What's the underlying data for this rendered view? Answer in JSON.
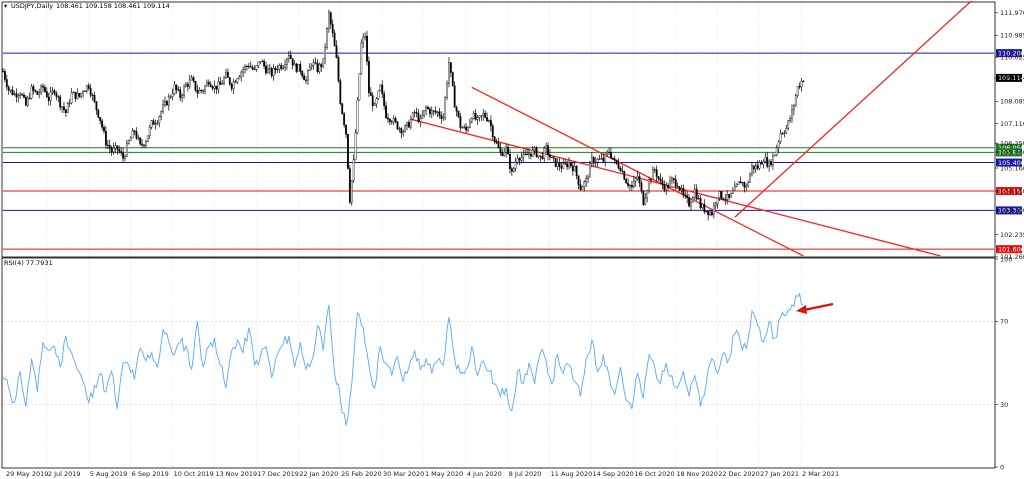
{
  "header": {
    "symbol_label": "USDJPY,Daily",
    "ohlc_text": "108.461 109.158 108.461 109.114",
    "rsi_label": "RSI(4) 77.7931"
  },
  "colors": {
    "candle": "#000000",
    "level_blue": "#1a1aa0",
    "level_green": "#1f7a1f",
    "level_red": "#e01010",
    "trend_red": "#ff2020",
    "rsi_line": "#58a8ff",
    "grid": "#d6d6d6",
    "frame": "#000000"
  },
  "chart_data": [
    {
      "type": "candlestick",
      "ylim": [
        101.3,
        112.4
      ],
      "x_tick_labels": [
        "29 May 2019",
        "2 Jul 2019",
        "5 Aug 2019",
        "6 Sep 2019",
        "10 Oct 2019",
        "13 Nov 2019",
        "17 Dec 2019",
        "22 Jan 2020",
        "25 Feb 2020",
        "30 Mar 2020",
        "1 May 2020",
        "4 Jun 2020",
        "8 Jul 2020",
        "11 Aug 2020",
        "14 Sep 2020",
        "16 Oct 2020",
        "18 Nov 2020",
        "22 Dec 2020",
        "27 Jan 2021",
        "2 Mar 2021"
      ],
      "y_tick_labels": [
        "111.970",
        "110.985",
        "110.025",
        "109.114",
        "108.085",
        "107.110",
        "106.250",
        "105.860",
        "105.160",
        "104.150",
        "103.300",
        "102.235",
        "101.260"
      ],
      "close_path": [
        [
          0,
          109.4
        ],
        [
          3,
          108.6
        ],
        [
          6,
          108.4
        ],
        [
          9,
          108.5
        ],
        [
          12,
          107.9
        ],
        [
          15,
          108.6
        ],
        [
          18,
          108.4
        ],
        [
          21,
          108.7
        ],
        [
          24,
          108.2
        ],
        [
          27,
          108.6
        ],
        [
          30,
          108.0
        ],
        [
          33,
          107.6
        ],
        [
          36,
          108.4
        ],
        [
          40,
          108.3
        ],
        [
          42,
          108.6
        ],
        [
          45,
          108.8
        ],
        [
          48,
          108.0
        ],
        [
          51,
          107.3
        ],
        [
          54,
          106.3
        ],
        [
          57,
          105.9
        ],
        [
          60,
          106.0
        ],
        [
          63,
          105.6
        ],
        [
          66,
          106.3
        ],
        [
          69,
          106.8
        ],
        [
          72,
          106.1
        ],
        [
          75,
          106.4
        ],
        [
          78,
          107.1
        ],
        [
          81,
          107.3
        ],
        [
          84,
          107.8
        ],
        [
          87,
          108.2
        ],
        [
          90,
          108.7
        ],
        [
          93,
          108.3
        ],
        [
          96,
          108.8
        ],
        [
          99,
          109.0
        ],
        [
          102,
          108.5
        ],
        [
          105,
          108.6
        ],
        [
          108,
          109.0
        ],
        [
          111,
          108.7
        ],
        [
          114,
          108.8
        ],
        [
          117,
          109.2
        ],
        [
          120,
          108.8
        ],
        [
          123,
          109.2
        ],
        [
          126,
          109.5
        ],
        [
          129,
          109.7
        ],
        [
          132,
          109.4
        ],
        [
          135,
          109.9
        ],
        [
          138,
          109.5
        ],
        [
          141,
          109.3
        ],
        [
          144,
          109.6
        ],
        [
          147,
          109.7
        ],
        [
          150,
          110.2
        ],
        [
          153,
          109.6
        ],
        [
          156,
          109.5
        ],
        [
          159,
          109.0
        ],
        [
          162,
          109.8
        ],
        [
          165,
          109.5
        ],
        [
          168,
          109.8
        ],
        [
          171,
          111.9
        ],
        [
          173,
          111.0
        ],
        [
          175,
          109.9
        ],
        [
          177,
          108.1
        ],
        [
          180,
          106.7
        ],
        [
          182,
          103.8
        ],
        [
          184,
          105.4
        ],
        [
          186,
          108.0
        ],
        [
          188,
          110.6
        ],
        [
          190,
          111.0
        ],
        [
          192,
          108.5
        ],
        [
          195,
          107.8
        ],
        [
          198,
          108.7
        ],
        [
          201,
          107.5
        ],
        [
          204,
          107.3
        ],
        [
          207,
          107.0
        ],
        [
          210,
          106.8
        ],
        [
          213,
          107.1
        ],
        [
          216,
          107.6
        ],
        [
          219,
          107.2
        ],
        [
          222,
          107.8
        ],
        [
          225,
          107.6
        ],
        [
          228,
          107.6
        ],
        [
          231,
          107.4
        ],
        [
          234,
          109.8
        ],
        [
          237,
          108.0
        ],
        [
          240,
          107.0
        ],
        [
          243,
          106.8
        ],
        [
          246,
          107.5
        ],
        [
          249,
          107.2
        ],
        [
          252,
          107.5
        ],
        [
          255,
          107.3
        ],
        [
          258,
          106.4
        ],
        [
          261,
          105.8
        ],
        [
          264,
          106.0
        ],
        [
          267,
          104.9
        ],
        [
          270,
          105.7
        ],
        [
          273,
          105.6
        ],
        [
          276,
          105.8
        ],
        [
          279,
          105.9
        ],
        [
          282,
          105.6
        ],
        [
          285,
          106.0
        ],
        [
          288,
          105.5
        ],
        [
          291,
          105.3
        ],
        [
          294,
          105.2
        ],
        [
          297,
          105.4
        ],
        [
          300,
          105.1
        ],
        [
          303,
          104.3
        ],
        [
          306,
          104.6
        ],
        [
          309,
          105.5
        ],
        [
          312,
          105.5
        ],
        [
          315,
          105.5
        ],
        [
          318,
          105.9
        ],
        [
          321,
          105.4
        ],
        [
          324,
          105.2
        ],
        [
          327,
          104.6
        ],
        [
          330,
          104.3
        ],
        [
          333,
          104.8
        ],
        [
          336,
          103.7
        ],
        [
          339,
          104.6
        ],
        [
          342,
          105.1
        ],
        [
          345,
          104.5
        ],
        [
          348,
          104.3
        ],
        [
          351,
          104.6
        ],
        [
          354,
          104.5
        ],
        [
          357,
          103.9
        ],
        [
          360,
          103.6
        ],
        [
          363,
          104.2
        ],
        [
          366,
          103.5
        ],
        [
          369,
          103.3
        ],
        [
          372,
          103.2
        ],
        [
          375,
          104.0
        ],
        [
          378,
          103.9
        ],
        [
          381,
          103.8
        ],
        [
          384,
          104.2
        ],
        [
          387,
          104.6
        ],
        [
          390,
          104.3
        ],
        [
          393,
          105.2
        ],
        [
          396,
          105.2
        ],
        [
          399,
          105.6
        ],
        [
          402,
          105.3
        ],
        [
          405,
          105.8
        ],
        [
          408,
          106.7
        ],
        [
          411,
          106.9
        ],
        [
          414,
          107.6
        ],
        [
          417,
          108.7
        ],
        [
          420,
          109.1
        ]
      ],
      "levels": [
        {
          "label": "110.200",
          "value": 110.2,
          "color": "#1a1aa0"
        },
        {
          "label": "106.050",
          "value": 106.05,
          "color": "#1f7a1f"
        },
        {
          "label": "105.844",
          "value": 105.844,
          "color": "#1f7a1f"
        },
        {
          "label": "105.400",
          "value": 105.4,
          "color": "#1a1aa0"
        },
        {
          "label": "104.150",
          "value": 104.15,
          "color": "#e01010"
        },
        {
          "label": "103.300",
          "value": 103.3,
          "color": "#1a1aa0"
        },
        {
          "label": "101.600",
          "value": 101.6,
          "color": "#e01010"
        }
      ],
      "current_price_label": "109.114",
      "current_price": 109.114,
      "trendlines": [
        {
          "from": [
            246,
            108.7
          ],
          "to": [
            420,
            101.3
          ]
        },
        {
          "from": [
            214,
            107.3
          ],
          "to": [
            492,
            101.3
          ]
        },
        {
          "from": [
            384,
            103.0
          ],
          "to": [
            520,
            113.4
          ]
        }
      ]
    },
    {
      "type": "line",
      "ylim": [
        0,
        100
      ],
      "y_tick_labels": [
        "100",
        "70",
        "30",
        "0"
      ],
      "rsi_series": [
        [
          0,
          43
        ],
        [
          3,
          38
        ],
        [
          6,
          31
        ],
        [
          9,
          46
        ],
        [
          12,
          29
        ],
        [
          15,
          52
        ],
        [
          18,
          36
        ],
        [
          21,
          60
        ],
        [
          24,
          56
        ],
        [
          27,
          58
        ],
        [
          30,
          48
        ],
        [
          33,
          63
        ],
        [
          36,
          55
        ],
        [
          39,
          47
        ],
        [
          42,
          41
        ],
        [
          45,
          31
        ],
        [
          48,
          39
        ],
        [
          51,
          45
        ],
        [
          54,
          36
        ],
        [
          57,
          46
        ],
        [
          60,
          28
        ],
        [
          63,
          50
        ],
        [
          66,
          49
        ],
        [
          69,
          42
        ],
        [
          72,
          57
        ],
        [
          75,
          51
        ],
        [
          78,
          55
        ],
        [
          81,
          48
        ],
        [
          84,
          66
        ],
        [
          87,
          60
        ],
        [
          90,
          54
        ],
        [
          93,
          60
        ],
        [
          96,
          58
        ],
        [
          99,
          47
        ],
        [
          102,
          70
        ],
        [
          105,
          48
        ],
        [
          108,
          58
        ],
        [
          111,
          62
        ],
        [
          114,
          49
        ],
        [
          117,
          38
        ],
        [
          120,
          56
        ],
        [
          123,
          61
        ],
        [
          126,
          55
        ],
        [
          129,
          67
        ],
        [
          132,
          49
        ],
        [
          135,
          53
        ],
        [
          138,
          58
        ],
        [
          141,
          43
        ],
        [
          144,
          54
        ],
        [
          147,
          59
        ],
        [
          150,
          63
        ],
        [
          153,
          48
        ],
        [
          156,
          60
        ],
        [
          159,
          47
        ],
        [
          162,
          51
        ],
        [
          165,
          68
        ],
        [
          168,
          56
        ],
        [
          171,
          78
        ],
        [
          174,
          45
        ],
        [
          177,
          33
        ],
        [
          180,
          20
        ],
        [
          183,
          40
        ],
        [
          186,
          74
        ],
        [
          189,
          67
        ],
        [
          192,
          49
        ],
        [
          195,
          38
        ],
        [
          198,
          58
        ],
        [
          201,
          50
        ],
        [
          204,
          44
        ],
        [
          207,
          53
        ],
        [
          210,
          41
        ],
        [
          213,
          48
        ],
        [
          216,
          56
        ],
        [
          219,
          47
        ],
        [
          222,
          52
        ],
        [
          225,
          45
        ],
        [
          228,
          51
        ],
        [
          231,
          49
        ],
        [
          234,
          72
        ],
        [
          237,
          52
        ],
        [
          240,
          45
        ],
        [
          243,
          47
        ],
        [
          246,
          58
        ],
        [
          249,
          44
        ],
        [
          252,
          51
        ],
        [
          255,
          46
        ],
        [
          258,
          40
        ],
        [
          261,
          34
        ],
        [
          264,
          38
        ],
        [
          267,
          27
        ],
        [
          270,
          46
        ],
        [
          273,
          40
        ],
        [
          276,
          50
        ],
        [
          279,
          40
        ],
        [
          282,
          55
        ],
        [
          285,
          51
        ],
        [
          288,
          40
        ],
        [
          291,
          54
        ],
        [
          294,
          45
        ],
        [
          297,
          49
        ],
        [
          300,
          41
        ],
        [
          303,
          34
        ],
        [
          306,
          52
        ],
        [
          309,
          61
        ],
        [
          312,
          46
        ],
        [
          315,
          54
        ],
        [
          318,
          44
        ],
        [
          321,
          35
        ],
        [
          324,
          48
        ],
        [
          327,
          32
        ],
        [
          330,
          28
        ],
        [
          333,
          45
        ],
        [
          336,
          33
        ],
        [
          339,
          54
        ],
        [
          342,
          48
        ],
        [
          345,
          40
        ],
        [
          348,
          50
        ],
        [
          351,
          44
        ],
        [
          354,
          38
        ],
        [
          357,
          46
        ],
        [
          360,
          34
        ],
        [
          363,
          44
        ],
        [
          366,
          29
        ],
        [
          369,
          40
        ],
        [
          372,
          52
        ],
        [
          375,
          45
        ],
        [
          378,
          55
        ],
        [
          381,
          52
        ],
        [
          384,
          64
        ],
        [
          387,
          60
        ],
        [
          390,
          57
        ],
        [
          393,
          75
        ],
        [
          396,
          68
        ],
        [
          399,
          60
        ],
        [
          402,
          70
        ],
        [
          405,
          62
        ],
        [
          408,
          72
        ],
        [
          411,
          73
        ],
        [
          414,
          78
        ],
        [
          417,
          82
        ],
        [
          420,
          77.8
        ]
      ]
    }
  ]
}
